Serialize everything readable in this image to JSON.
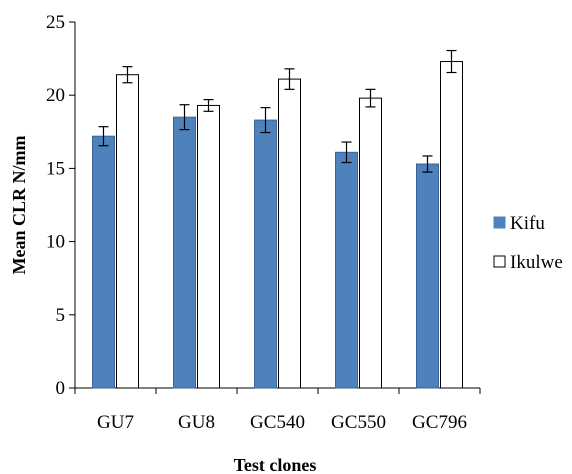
{
  "chart_data": {
    "type": "bar",
    "categories": [
      "GU7",
      "GU8",
      "GC540",
      "GC550",
      "GC796"
    ],
    "series": [
      {
        "name": "Kifu",
        "values": [
          17.2,
          18.5,
          18.3,
          16.1,
          15.3
        ],
        "errors": [
          0.65,
          0.85,
          0.85,
          0.7,
          0.55
        ],
        "color": "#4f81bd"
      },
      {
        "name": "Ikulwe",
        "values": [
          21.4,
          19.3,
          21.1,
          19.8,
          22.3
        ],
        "errors": [
          0.55,
          0.4,
          0.7,
          0.6,
          0.75
        ],
        "color": "#ffffff"
      }
    ],
    "xlabel": "Test clones",
    "ylabel": "Mean CLR N/mm",
    "ylim": [
      0,
      25
    ],
    "yticks": [
      "0",
      "5",
      "10",
      "15",
      "20",
      "25"
    ],
    "grid": false,
    "legend_position": "right"
  }
}
